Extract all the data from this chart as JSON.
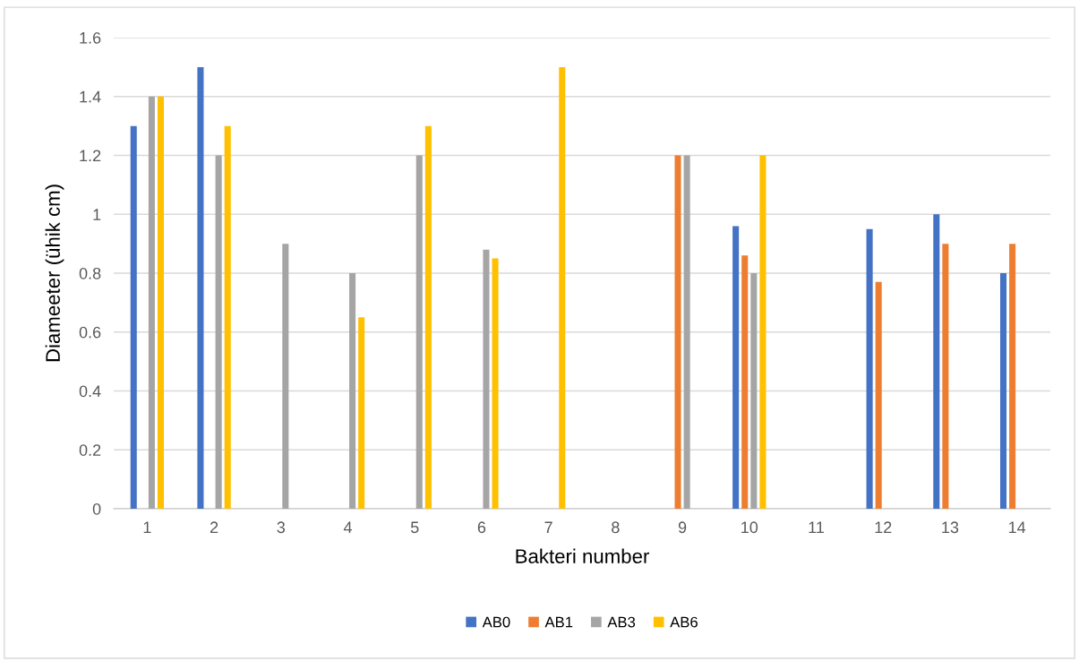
{
  "chart_data": {
    "type": "bar",
    "xlabel": "Bakteri number",
    "ylabel": "Diameeter (ühik cm)",
    "categories": [
      "1",
      "2",
      "3",
      "4",
      "5",
      "6",
      "7",
      "8",
      "9",
      "10",
      "11",
      "12",
      "13",
      "14"
    ],
    "series": [
      {
        "name": "AB0",
        "color": "#4472c4",
        "values": [
          1.3,
          1.5,
          null,
          null,
          null,
          null,
          null,
          null,
          null,
          0.96,
          null,
          0.95,
          1.0,
          0.8
        ]
      },
      {
        "name": "AB1",
        "color": "#ed7d31",
        "values": [
          null,
          null,
          null,
          null,
          null,
          null,
          null,
          null,
          1.2,
          0.86,
          null,
          0.77,
          0.9,
          0.9
        ]
      },
      {
        "name": "AB3",
        "color": "#a5a5a5",
        "values": [
          1.4,
          1.2,
          0.9,
          0.8,
          1.2,
          0.88,
          null,
          null,
          1.2,
          0.8,
          null,
          null,
          null,
          null
        ]
      },
      {
        "name": "AB6",
        "color": "#ffc000",
        "values": [
          1.4,
          1.3,
          null,
          0.65,
          1.3,
          0.85,
          1.5,
          null,
          null,
          1.2,
          null,
          null,
          null,
          null
        ]
      }
    ],
    "ylim": [
      0,
      1.6
    ],
    "yticks": [
      0,
      0.2,
      0.4,
      0.6,
      0.8,
      1,
      1.2,
      1.4,
      1.6
    ],
    "grid": "y",
    "legend": "bottom"
  }
}
